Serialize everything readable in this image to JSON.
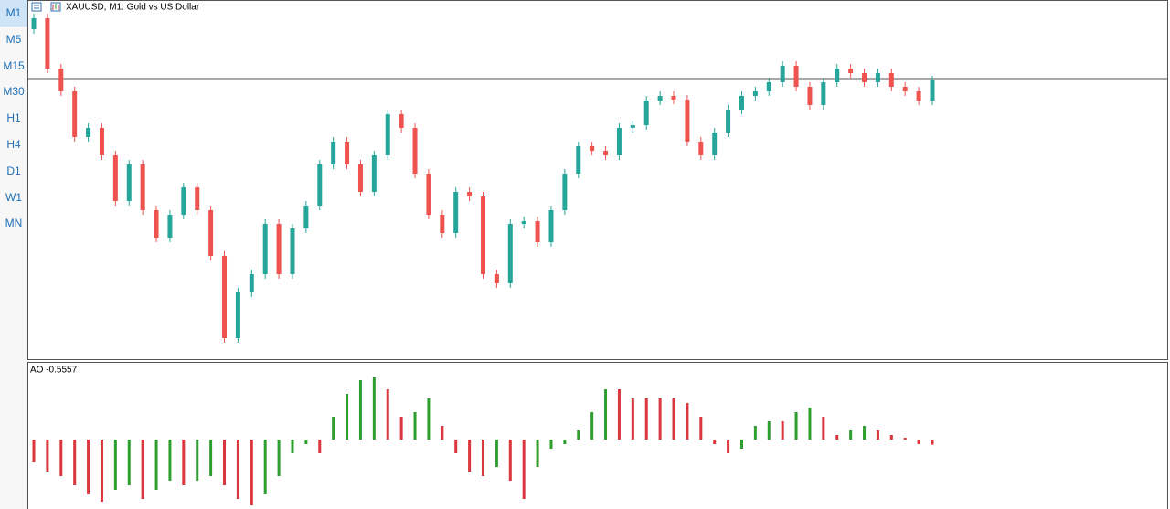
{
  "toolbar": {
    "timeframes": [
      "M1",
      "M5",
      "M15",
      "M30",
      "H1",
      "H4",
      "D1",
      "W1",
      "MN"
    ],
    "selected": "M1"
  },
  "chart_data": [
    {
      "type": "candlestick",
      "title": "XAUUSD, M1:  Gold vs US Dollar",
      "up_color": "#26a69a",
      "down_color": "#ef5350",
      "hline": 306,
      "hline_color": "#8c8c8c",
      "ylim": [
        0,
        374
      ],
      "open": [
        360,
        372,
        317,
        292,
        242,
        252,
        222,
        172,
        212,
        162,
        132,
        157,
        187,
        162,
        112,
        22,
        72,
        92,
        147,
        92,
        142,
        167,
        212,
        237,
        212,
        182,
        222,
        267,
        252,
        202,
        157,
        137,
        182,
        177,
        92,
        82,
        147,
        150,
        127,
        162,
        202,
        232,
        227,
        222,
        252,
        255,
        282,
        287,
        283,
        237,
        222,
        247,
        272,
        287,
        292,
        302,
        320,
        297,
        277,
        302,
        317,
        312,
        302,
        312,
        297,
        292,
        282
      ],
      "high": [
        377,
        377,
        322,
        297,
        257,
        257,
        227,
        217,
        217,
        167,
        162,
        192,
        192,
        167,
        117,
        77,
        97,
        152,
        152,
        147,
        172,
        217,
        242,
        242,
        217,
        227,
        272,
        272,
        257,
        207,
        162,
        187,
        187,
        182,
        97,
        152,
        155,
        155,
        167,
        207,
        237,
        237,
        232,
        257,
        260,
        287,
        292,
        292,
        288,
        242,
        252,
        277,
        292,
        297,
        307,
        325,
        325,
        302,
        307,
        322,
        322,
        317,
        317,
        317,
        302,
        297,
        309
      ],
      "low": [
        355,
        312,
        287,
        237,
        237,
        217,
        167,
        167,
        157,
        127,
        127,
        152,
        157,
        107,
        17,
        17,
        67,
        87,
        87,
        87,
        137,
        162,
        207,
        207,
        177,
        177,
        217,
        247,
        197,
        152,
        132,
        132,
        172,
        87,
        77,
        77,
        142,
        122,
        122,
        157,
        197,
        222,
        217,
        217,
        247,
        250,
        277,
        278,
        232,
        217,
        217,
        242,
        267,
        282,
        287,
        297,
        292,
        272,
        272,
        297,
        307,
        297,
        297,
        292,
        287,
        277,
        277
      ],
      "close": [
        372,
        317,
        292,
        242,
        252,
        222,
        172,
        212,
        162,
        132,
        157,
        187,
        162,
        112,
        22,
        72,
        92,
        147,
        92,
        142,
        167,
        212,
        237,
        212,
        182,
        222,
        267,
        252,
        202,
        157,
        137,
        182,
        177,
        92,
        82,
        147,
        150,
        127,
        162,
        202,
        232,
        227,
        222,
        252,
        255,
        282,
        287,
        283,
        237,
        222,
        247,
        272,
        287,
        292,
        302,
        320,
        297,
        277,
        302,
        317,
        312,
        302,
        312,
        297,
        292,
        282,
        304
      ]
    },
    {
      "type": "histogram",
      "label": "AO -0.5557",
      "up_color": "#2e9e2e",
      "down_color": "#d9363e",
      "ylim": [
        -7.6,
        8.4
      ],
      "values": [
        -2.5,
        -3.5,
        -4,
        -5,
        -6,
        -6.8,
        -5.5,
        -5,
        -6.5,
        -5.5,
        -4.5,
        -5,
        -4.5,
        -4,
        -5,
        -6.5,
        -7.2,
        -6,
        -4,
        -1.5,
        -0.5,
        -1.5,
        2.5,
        5,
        6.5,
        6.8,
        5.5,
        2.5,
        3,
        4.5,
        1.5,
        -1.5,
        -3.5,
        -4,
        -3,
        -4.5,
        -6.5,
        -3,
        -1,
        -0.5,
        1,
        3,
        5.5,
        5.5,
        4.5,
        4.5,
        4.5,
        4.5,
        4,
        2.5,
        -0.5,
        -1.5,
        -1,
        1.5,
        2,
        2,
        3,
        3.5,
        2.5,
        0.5,
        1,
        1.5,
        1,
        0.5,
        0.2,
        -0.5,
        -0.5557
      ]
    }
  ]
}
